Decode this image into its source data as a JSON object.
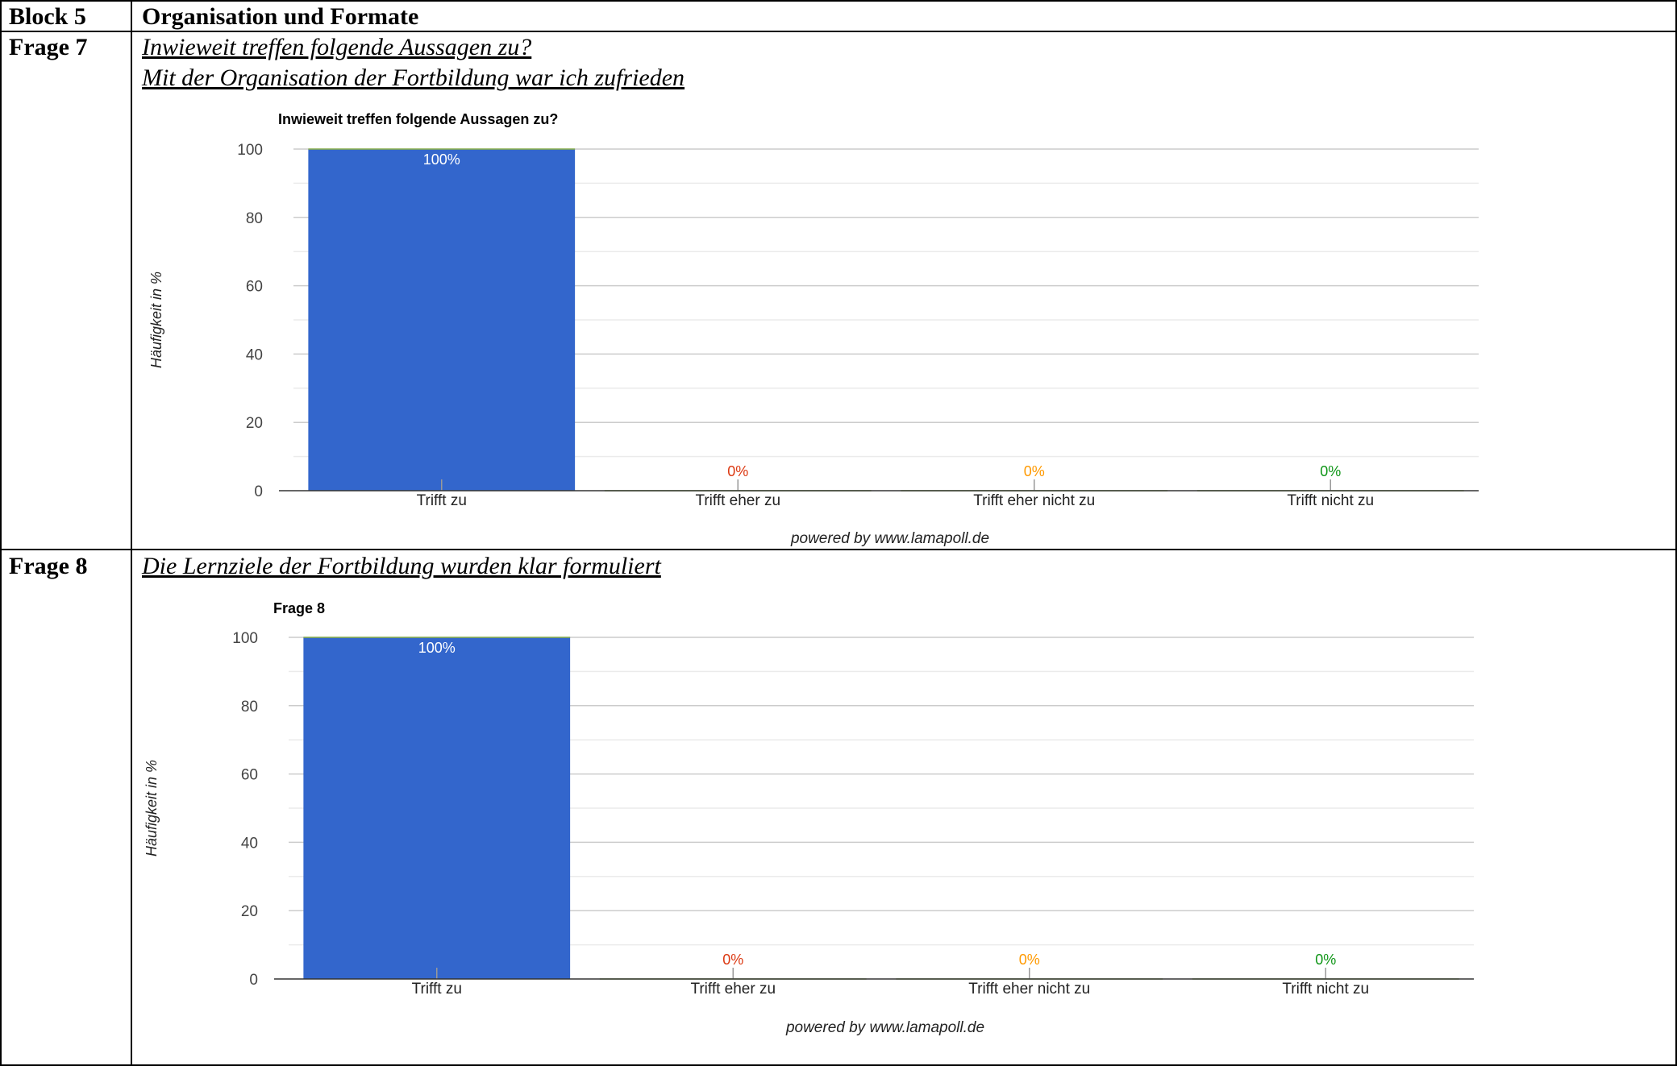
{
  "table": {
    "block_label": "Block 5",
    "block_title": "Organisation und Formate",
    "rows": [
      {
        "label": "Frage 7",
        "lines": [
          "Inwieweit treffen folgende Aussagen zu?",
          "Mit der Organisation der Fortbildung war ich zufrieden"
        ]
      },
      {
        "label": "Frage 8",
        "lines": [
          "Die Lernziele der Fortbildung wurden klar formuliert"
        ]
      }
    ]
  },
  "colors": {
    "bar": "#3366cc",
    "label_inside": "#ffffff",
    "cat2": "#dc3912",
    "cat3": "#ff9900",
    "cat4": "#109618",
    "grid": "#cccccc",
    "grid_minor": "#ebebeb",
    "baseline": "#333333"
  },
  "chart_data": [
    {
      "type": "bar",
      "title": "Inwieweit treffen folgende Aussagen zu?",
      "ylabel": "Häufigkeit in %",
      "xlabel": "",
      "categories": [
        "Trifft zu",
        "Trifft eher zu",
        "Trifft eher nicht zu",
        "Trifft nicht zu"
      ],
      "values": [
        100,
        0,
        0,
        0
      ],
      "data_labels": [
        "100%",
        "0%",
        "0%",
        "0%"
      ],
      "yticks": [
        0,
        20,
        40,
        60,
        80,
        100
      ],
      "ylim": [
        0,
        100
      ],
      "grid": true,
      "legend": "none",
      "footer": "powered by www.lamapoll.de"
    },
    {
      "type": "bar",
      "title": "Frage 8",
      "ylabel": "Häufigkeit in %",
      "xlabel": "",
      "categories": [
        "Trifft zu",
        "Trifft eher zu",
        "Trifft eher nicht zu",
        "Trifft nicht zu"
      ],
      "values": [
        100,
        0,
        0,
        0
      ],
      "data_labels": [
        "100%",
        "0%",
        "0%",
        "0%"
      ],
      "yticks": [
        0,
        20,
        40,
        60,
        80,
        100
      ],
      "ylim": [
        0,
        100
      ],
      "grid": true,
      "legend": "none",
      "footer": "powered by www.lamapoll.de"
    }
  ]
}
